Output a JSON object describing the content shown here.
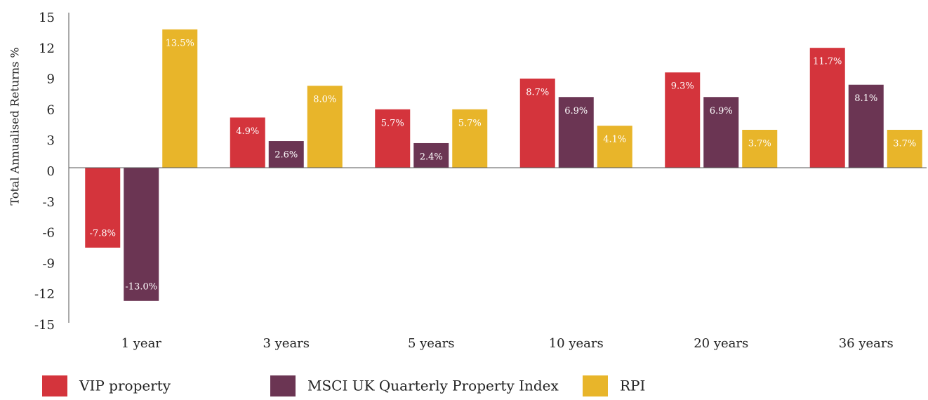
{
  "chart_data": {
    "type": "bar",
    "y_label": "Total Annualised Returns %",
    "categories": [
      "1 year",
      "3 years",
      "5 years",
      "10 years",
      "20 years",
      "36 years"
    ],
    "series": [
      {
        "name": "VIP property",
        "color": "#d4343c",
        "values": [
          -7.8,
          4.9,
          5.7,
          8.7,
          9.3,
          11.7
        ],
        "value_labels": [
          "-7.8%",
          "4.9%",
          "5.7%",
          "8.7%",
          "9.3%",
          "11.7%"
        ]
      },
      {
        "name": "MSCI UK Quarterly Property Index",
        "color": "#6b3553",
        "values": [
          -13.0,
          2.6,
          2.4,
          6.9,
          6.9,
          8.1
        ],
        "value_labels": [
          "-13.0%",
          "2.6%",
          "2.4%",
          "6.9%",
          "6.9%",
          "8.1%"
        ]
      },
      {
        "name": "RPI",
        "color": "#e8b52a",
        "values": [
          13.5,
          8.0,
          5.7,
          4.1,
          3.7,
          3.7
        ],
        "value_labels": [
          "13.5%",
          "8.0%",
          "5.7%",
          "4.1%",
          "3.7%",
          "3.7%"
        ]
      }
    ],
    "ylim": [
      -15,
      15
    ],
    "yticks": [
      15,
      12,
      9,
      6,
      3,
      0,
      -3,
      -6,
      -9,
      -12,
      -15
    ],
    "grid": false,
    "legend": "bottom"
  }
}
